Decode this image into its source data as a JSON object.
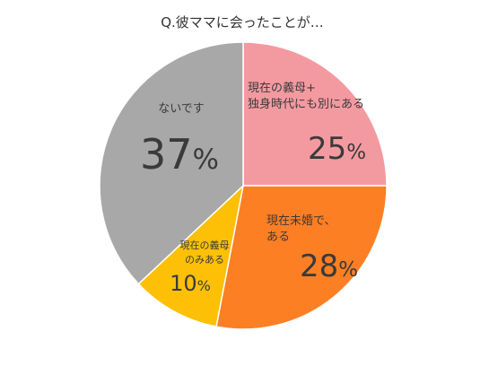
{
  "chart_data": {
    "type": "pie",
    "title": "Q.彼ママに会ったことが…",
    "legend": "none",
    "slices": [
      {
        "name": "現在の義母+\n独身時代にも別にある",
        "value": 25,
        "label": "25",
        "unit": "%",
        "color": "#F39AA1"
      },
      {
        "name": "現在未婚で、\nある",
        "value": 28,
        "label": "28",
        "unit": "%",
        "color": "#FD7F24"
      },
      {
        "name": "現在の義母\nのみある",
        "value": 10,
        "label": "10",
        "unit": "%",
        "color": "#FDC007"
      },
      {
        "name": "ないです",
        "value": 37,
        "label": "37",
        "unit": "%",
        "color": "#A8A8A8"
      }
    ]
  }
}
